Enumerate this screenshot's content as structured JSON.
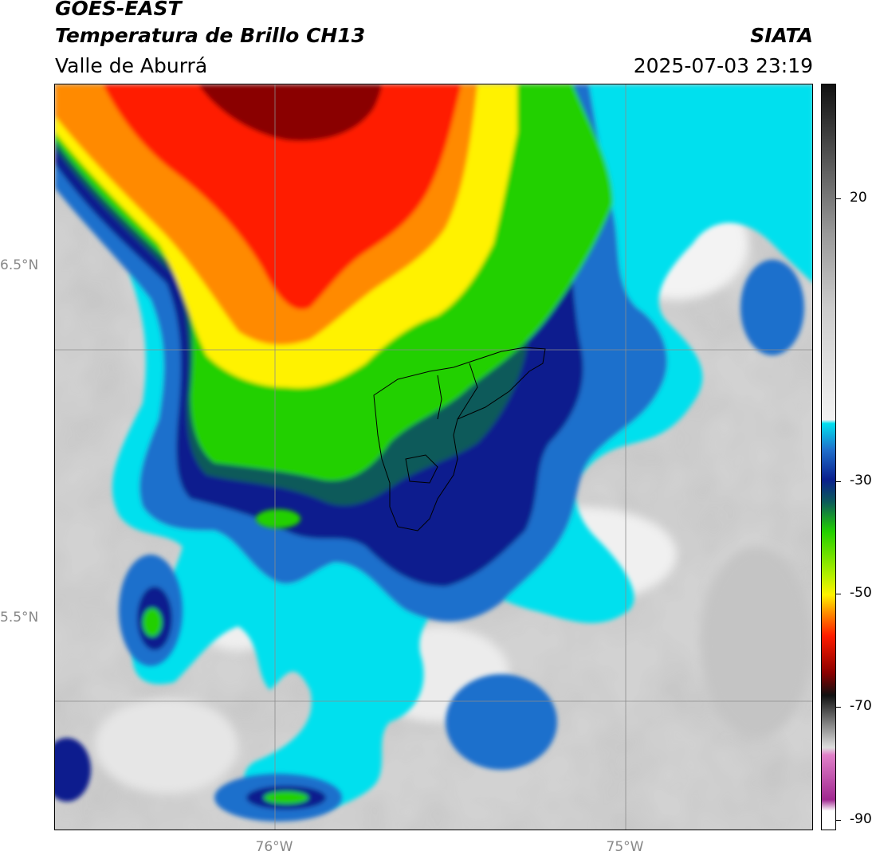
{
  "header": {
    "satellite": "GOES-EAST",
    "product": "Temperatura de Brillo CH13",
    "region": "Valle de Aburrá",
    "brand": "SIATA",
    "datetime": "2025-07-03 23:19"
  },
  "map": {
    "lat_ticks": [
      "6.5°N",
      "5.5°N"
    ],
    "lon_ticks": [
      "76°W",
      "75°W"
    ],
    "gridlines": true
  },
  "colorbar": {
    "ticks": [
      "20",
      "-30",
      "-50",
      "-70",
      "-90"
    ]
  },
  "colors": {
    "warm_clear": "#d8d8d8",
    "cyan": "#00e5f0",
    "blue": "#1f6fcc",
    "navy": "#0a1e8c",
    "green": "#1fd400",
    "yellow": "#fff000",
    "orange": "#ff8c00",
    "red": "#ff1a00",
    "darkred": "#6b0000",
    "magenta": "#d060c0"
  }
}
